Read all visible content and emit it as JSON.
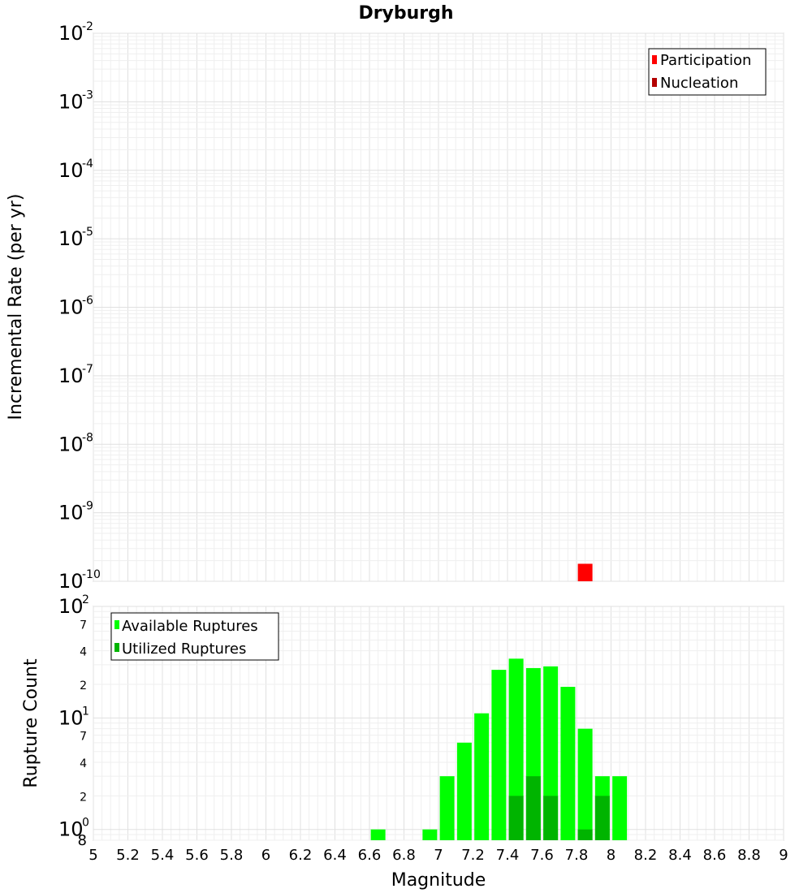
{
  "chart_data": [
    {
      "type": "bar",
      "title": "Dryburgh",
      "xlabel": "",
      "ylabel": "Incremental Rate (per yr)",
      "yscale": "log",
      "ylim": [
        1e-10,
        0.01
      ],
      "xlim": [
        5,
        9
      ],
      "grid": true,
      "legend_position": "top-right",
      "y_tick_labels": [
        {
          "base": "10",
          "exp": "-2",
          "value": 0.01
        },
        {
          "base": "10",
          "exp": "-3",
          "value": 0.001
        },
        {
          "base": "10",
          "exp": "-4",
          "value": 0.0001
        },
        {
          "base": "10",
          "exp": "-5",
          "value": 1e-05
        },
        {
          "base": "10",
          "exp": "-6",
          "value": 1e-06
        },
        {
          "base": "10",
          "exp": "-7",
          "value": 1e-07
        },
        {
          "base": "10",
          "exp": "-8",
          "value": 1e-08
        },
        {
          "base": "10",
          "exp": "-9",
          "value": 1e-09
        },
        {
          "base": "10",
          "exp": "-10",
          "value": 1e-10
        }
      ],
      "series": [
        {
          "name": "Participation",
          "color": "#ff0000",
          "x": [
            7.85
          ],
          "values": [
            1.8e-10
          ]
        },
        {
          "name": "Nucleation",
          "color": "#b30000",
          "x": [],
          "values": []
        }
      ]
    },
    {
      "type": "bar",
      "title": "",
      "xlabel": "Magnitude",
      "ylabel": "Rupture Count",
      "yscale": "log",
      "ylim": [
        0.8,
        100
      ],
      "xlim": [
        5,
        9
      ],
      "grid": true,
      "legend_position": "top-left",
      "x_tick_labels": [
        "5",
        "5.2",
        "5.4",
        "5.6",
        "5.8",
        "6",
        "6.2",
        "6.4",
        "6.6",
        "6.8",
        "7",
        "7.2",
        "7.4",
        "7.6",
        "7.8",
        "8",
        "8.2",
        "8.4",
        "8.6",
        "8.8",
        "9"
      ],
      "y_tick_labels": [
        {
          "base": "10",
          "exp": "2",
          "value": 100
        },
        {
          "base": "10",
          "exp": "1",
          "value": 10
        },
        {
          "base": "10",
          "exp": "0",
          "value": 1
        }
      ],
      "y_minor_labels": [
        {
          "label": "7",
          "value": 70
        },
        {
          "label": "4",
          "value": 40
        },
        {
          "label": "2",
          "value": 20
        },
        {
          "label": "7",
          "value": 7
        },
        {
          "label": "4",
          "value": 4
        },
        {
          "label": "2",
          "value": 2
        },
        {
          "label": "8",
          "value": 0.8
        }
      ],
      "series": [
        {
          "name": "Available Ruptures",
          "color": "#00ff00",
          "x": [
            6.65,
            6.95,
            7.05,
            7.15,
            7.25,
            7.35,
            7.45,
            7.55,
            7.65,
            7.75,
            7.85,
            7.95,
            8.05
          ],
          "values": [
            1,
            1,
            3,
            6,
            11,
            27,
            34,
            28,
            29,
            19,
            8,
            3,
            3
          ]
        },
        {
          "name": "Utilized Ruptures",
          "color": "#00b400",
          "x": [
            7.45,
            7.55,
            7.65,
            7.85,
            7.95
          ],
          "values": [
            2,
            3,
            2,
            1,
            2
          ]
        }
      ]
    }
  ]
}
